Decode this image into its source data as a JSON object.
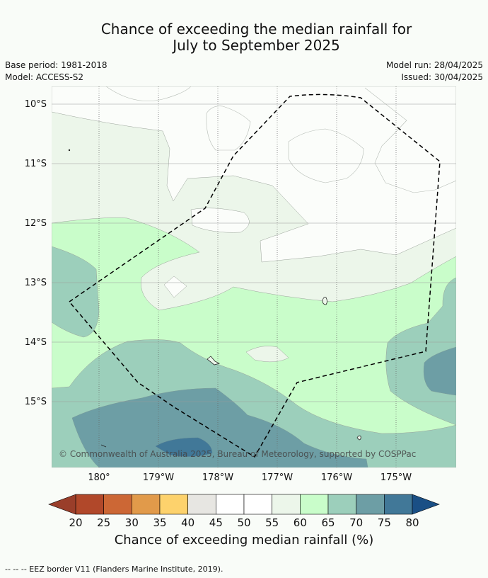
{
  "title_line1": "Chance of exceeding the median rainfall for",
  "title_line2": "July to September 2025",
  "meta": {
    "base_period": "Base period: 1981-2018",
    "model": "Model: ACCESS-S2",
    "model_run": "Model run: 28/04/2025",
    "issued": "Issued: 30/04/2025"
  },
  "lat_labels": [
    "10°S",
    "11°S",
    "12°S",
    "13°S",
    "14°S",
    "15°S"
  ],
  "lon_labels": [
    "180°",
    "179°W",
    "178°W",
    "177°W",
    "176°W",
    "175°W"
  ],
  "copyright": "© Commonwealth of Australia 2025, Bureau of Meteorology, supported by COSPPac",
  "colorbar": {
    "ticks": [
      "20",
      "25",
      "30",
      "35",
      "40",
      "45",
      "50",
      "55",
      "60",
      "65",
      "70",
      "75",
      "80"
    ],
    "colors": [
      "#b1482a",
      "#cc6735",
      "#e19a4a",
      "#fdd26c",
      "#e7e6e2",
      "#ffffff",
      "#ffffff",
      "#ecf6ea",
      "#c9fdca",
      "#9ccfbb",
      "#6d9ea5",
      "#417898"
    ],
    "under_color": "#9a3e2a",
    "over_color": "#1a4f85",
    "label": "Chance of exceeding median rainfall (%)"
  },
  "footnote": "--  --  -- EEZ border V11 (Flanders Marine Institute, 2019)."
}
